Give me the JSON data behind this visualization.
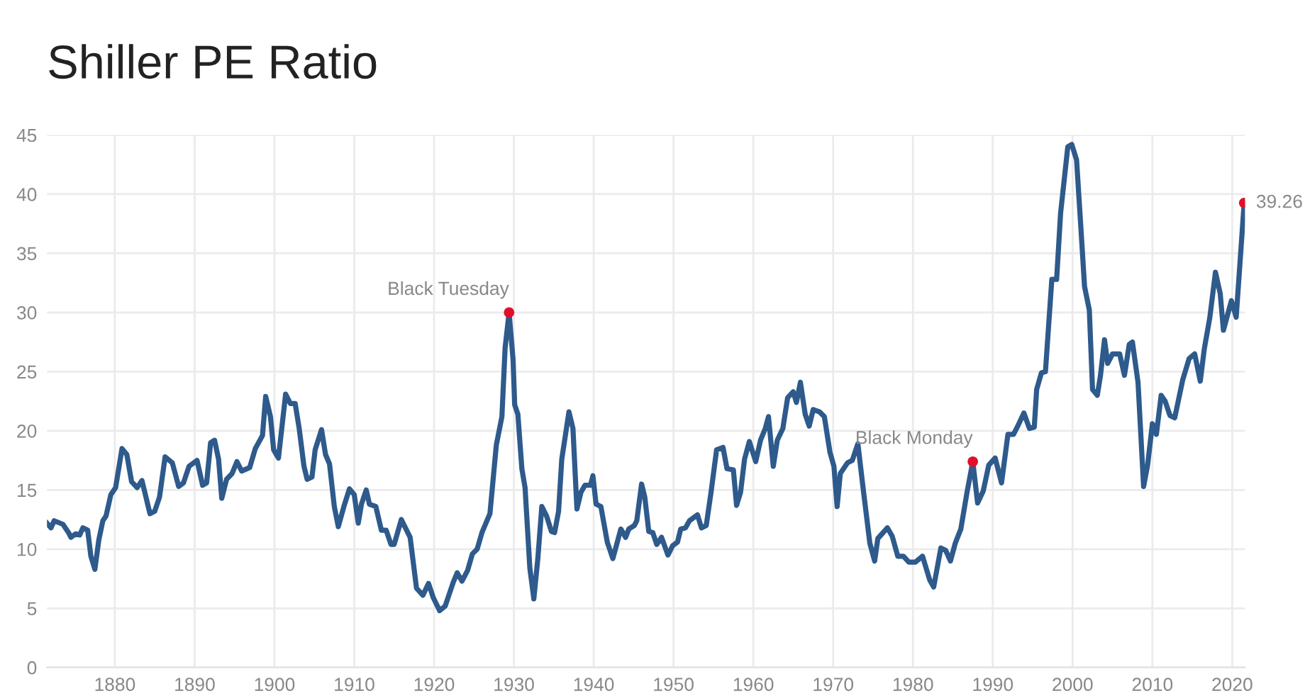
{
  "chart_data": {
    "type": "line",
    "title": "Shiller PE Ratio",
    "xlim": [
      1871.5,
      2021.6
    ],
    "ylim": [
      0,
      45
    ],
    "xticks": [
      1880,
      1890,
      1900,
      1910,
      1920,
      1930,
      1940,
      1950,
      1960,
      1970,
      1980,
      1990,
      2000,
      2010,
      2020
    ],
    "yticks": [
      0,
      5,
      10,
      15,
      20,
      25,
      30,
      35,
      40,
      45
    ],
    "grid": true,
    "line_style": "solid",
    "series": [
      {
        "color": "#2e5a8c",
        "x": [
          1871.5,
          1872.0,
          1872.4,
          1873.5,
          1874.2,
          1874.5,
          1875.1,
          1875.6,
          1876.0,
          1876.6,
          1877.0,
          1877.5,
          1878.0,
          1878.5,
          1878.9,
          1879.5,
          1880.1,
          1880.9,
          1881.5,
          1882.1,
          1882.8,
          1883.4,
          1884.4,
          1885.0,
          1885.6,
          1886.3,
          1887.2,
          1888.0,
          1888.6,
          1889.3,
          1890.3,
          1891.0,
          1891.5,
          1892.0,
          1892.5,
          1893.0,
          1893.4,
          1894.0,
          1894.7,
          1895.3,
          1895.9,
          1896.9,
          1897.6,
          1898.5,
          1898.9,
          1899.5,
          1899.9,
          1900.5,
          1901.4,
          1902.0,
          1902.6,
          1903.1,
          1903.7,
          1904.1,
          1904.7,
          1905.1,
          1905.9,
          1906.4,
          1906.9,
          1907.5,
          1908.0,
          1908.7,
          1909.4,
          1910.0,
          1910.5,
          1910.9,
          1911.5,
          1911.9,
          1912.7,
          1913.4,
          1914.0,
          1914.6,
          1915.0,
          1915.9,
          1917.0,
          1917.8,
          1918.6,
          1919.3,
          1919.9,
          1920.7,
          1921.4,
          1922.4,
          1922.9,
          1923.5,
          1924.2,
          1924.8,
          1925.4,
          1926.0,
          1927.0,
          1927.8,
          1928.5,
          1928.9,
          1929.4,
          1929.9,
          1930.1,
          1930.5,
          1931.0,
          1931.4,
          1932.0,
          1932.5,
          1933.0,
          1933.5,
          1934.1,
          1934.7,
          1935.1,
          1935.6,
          1936.0,
          1936.9,
          1937.4,
          1937.9,
          1938.4,
          1938.9,
          1939.6,
          1939.9,
          1940.3,
          1940.9,
          1941.7,
          1942.4,
          1943.4,
          1944.0,
          1944.4,
          1945.1,
          1945.4,
          1946.0,
          1946.4,
          1946.9,
          1947.4,
          1947.9,
          1948.5,
          1949.3,
          1949.9,
          1950.5,
          1950.9,
          1951.5,
          1952.0,
          1953.0,
          1953.5,
          1954.1,
          1954.7,
          1955.4,
          1956.2,
          1956.7,
          1957.5,
          1957.9,
          1958.4,
          1958.9,
          1959.5,
          1960.3,
          1960.9,
          1961.5,
          1961.9,
          1962.5,
          1963.0,
          1963.7,
          1964.3,
          1965.0,
          1965.4,
          1965.9,
          1966.5,
          1967.0,
          1967.5,
          1968.3,
          1968.9,
          1969.6,
          1970.1,
          1970.5,
          1970.9,
          1971.8,
          1972.4,
          1973.1,
          1973.8,
          1974.6,
          1975.2,
          1975.6,
          1976.8,
          1977.4,
          1978.1,
          1978.8,
          1979.5,
          1980.3,
          1981.2,
          1982.1,
          1982.6,
          1983.5,
          1984.1,
          1984.7,
          1985.3,
          1986.0,
          1986.8,
          1987.5,
          1988.1,
          1988.8,
          1989.5,
          1990.3,
          1991.1,
          1991.9,
          1992.6,
          1993.2,
          1993.9,
          1994.6,
          1995.2,
          1995.5,
          1996.1,
          1996.6,
          1997.4,
          1998.0,
          1998.5,
          1999.4,
          1999.9,
          2000.5,
          2001.0,
          2001.5,
          2002.1,
          2002.5,
          2003.1,
          2003.5,
          2004.0,
          2004.4,
          2005.0,
          2005.9,
          2006.5,
          2007.1,
          2007.5,
          2008.2,
          2008.9,
          2009.4,
          2010.0,
          2010.5,
          2011.1,
          2011.6,
          2012.2,
          2012.8,
          2013.8,
          2014.6,
          2015.3,
          2016.0,
          2016.5,
          2017.2,
          2017.9,
          2018.5,
          2018.9,
          2019.9,
          2020.5,
          2021.5
        ],
        "values": [
          12.2,
          11.8,
          12.4,
          12.1,
          11.4,
          11.0,
          11.3,
          11.2,
          11.8,
          11.6,
          9.4,
          8.3,
          10.8,
          12.4,
          12.8,
          14.6,
          15.2,
          18.5,
          18.0,
          15.7,
          15.2,
          15.8,
          13.0,
          13.2,
          14.4,
          17.8,
          17.3,
          15.3,
          15.6,
          17.0,
          17.5,
          15.4,
          15.6,
          19.0,
          19.2,
          17.6,
          14.3,
          15.9,
          16.4,
          17.4,
          16.6,
          16.9,
          18.5,
          19.6,
          22.9,
          21.2,
          18.4,
          17.7,
          23.1,
          22.3,
          22.3,
          20.2,
          17.0,
          15.9,
          16.1,
          18.4,
          20.1,
          18.0,
          17.2,
          13.6,
          11.9,
          13.6,
          15.1,
          14.6,
          12.2,
          13.8,
          15.0,
          13.8,
          13.6,
          11.6,
          11.6,
          10.4,
          10.4,
          12.5,
          11.0,
          6.7,
          6.1,
          7.1,
          5.9,
          4.8,
          5.2,
          7.2,
          8.0,
          7.3,
          8.2,
          9.6,
          10.0,
          11.4,
          13.0,
          18.8,
          21.2,
          27.0,
          30.0,
          26.0,
          22.2,
          21.4,
          16.8,
          15.2,
          8.4,
          5.8,
          9.2,
          13.6,
          12.8,
          11.5,
          11.4,
          13.2,
          17.6,
          21.6,
          20.2,
          13.4,
          14.8,
          15.4,
          15.4,
          16.2,
          13.8,
          13.6,
          10.6,
          9.2,
          11.7,
          11.0,
          11.7,
          12.0,
          12.4,
          15.5,
          14.4,
          11.5,
          11.4,
          10.4,
          11.0,
          9.5,
          10.3,
          10.6,
          11.7,
          11.8,
          12.4,
          12.9,
          11.8,
          12.0,
          14.8,
          18.4,
          18.6,
          16.8,
          16.7,
          13.7,
          14.8,
          17.6,
          19.1,
          17.4,
          19.2,
          20.2,
          21.2,
          17.0,
          19.2,
          20.2,
          22.8,
          23.3,
          22.4,
          24.1,
          21.4,
          20.4,
          21.8,
          21.6,
          21.2,
          18.2,
          17.0,
          13.6,
          16.4,
          17.3,
          17.5,
          18.9,
          14.9,
          10.5,
          9.0,
          10.9,
          11.8,
          11.1,
          9.4,
          9.4,
          8.9,
          8.9,
          9.4,
          7.4,
          6.8,
          10.1,
          9.9,
          9.0,
          10.5,
          11.7,
          14.9,
          17.4,
          13.9,
          14.9,
          17.1,
          17.7,
          15.6,
          19.7,
          19.7,
          20.5,
          21.5,
          20.2,
          20.3,
          23.5,
          24.9,
          25.0,
          32.8,
          32.8,
          38.4,
          44.0,
          44.2,
          42.9,
          37.6,
          32.2,
          30.2,
          23.5,
          23.0,
          24.7,
          27.7,
          25.7,
          26.5,
          26.5,
          24.7,
          27.3,
          27.5,
          24.1,
          15.3,
          17.1,
          20.6,
          19.7,
          23.0,
          22.5,
          21.3,
          21.1,
          24.3,
          26.1,
          26.5,
          24.2,
          26.9,
          29.6,
          33.4,
          31.6,
          28.5,
          31.0,
          29.6,
          39.26
        ]
      },
      {
        "type": "scatter",
        "marker": "circle",
        "color": "#e0102a",
        "x": [
          1929.4,
          1987.5,
          2021.5
        ],
        "values": [
          30.0,
          17.4,
          39.26
        ]
      }
    ],
    "annotations": [
      {
        "text": "Black Tuesday",
        "x": 1929.4,
        "y": 30.0
      },
      {
        "text": "Black Monday",
        "x": 1987.5,
        "y": 17.4
      },
      {
        "text": "39.26",
        "x": 2021.5,
        "y": 39.26
      }
    ]
  }
}
